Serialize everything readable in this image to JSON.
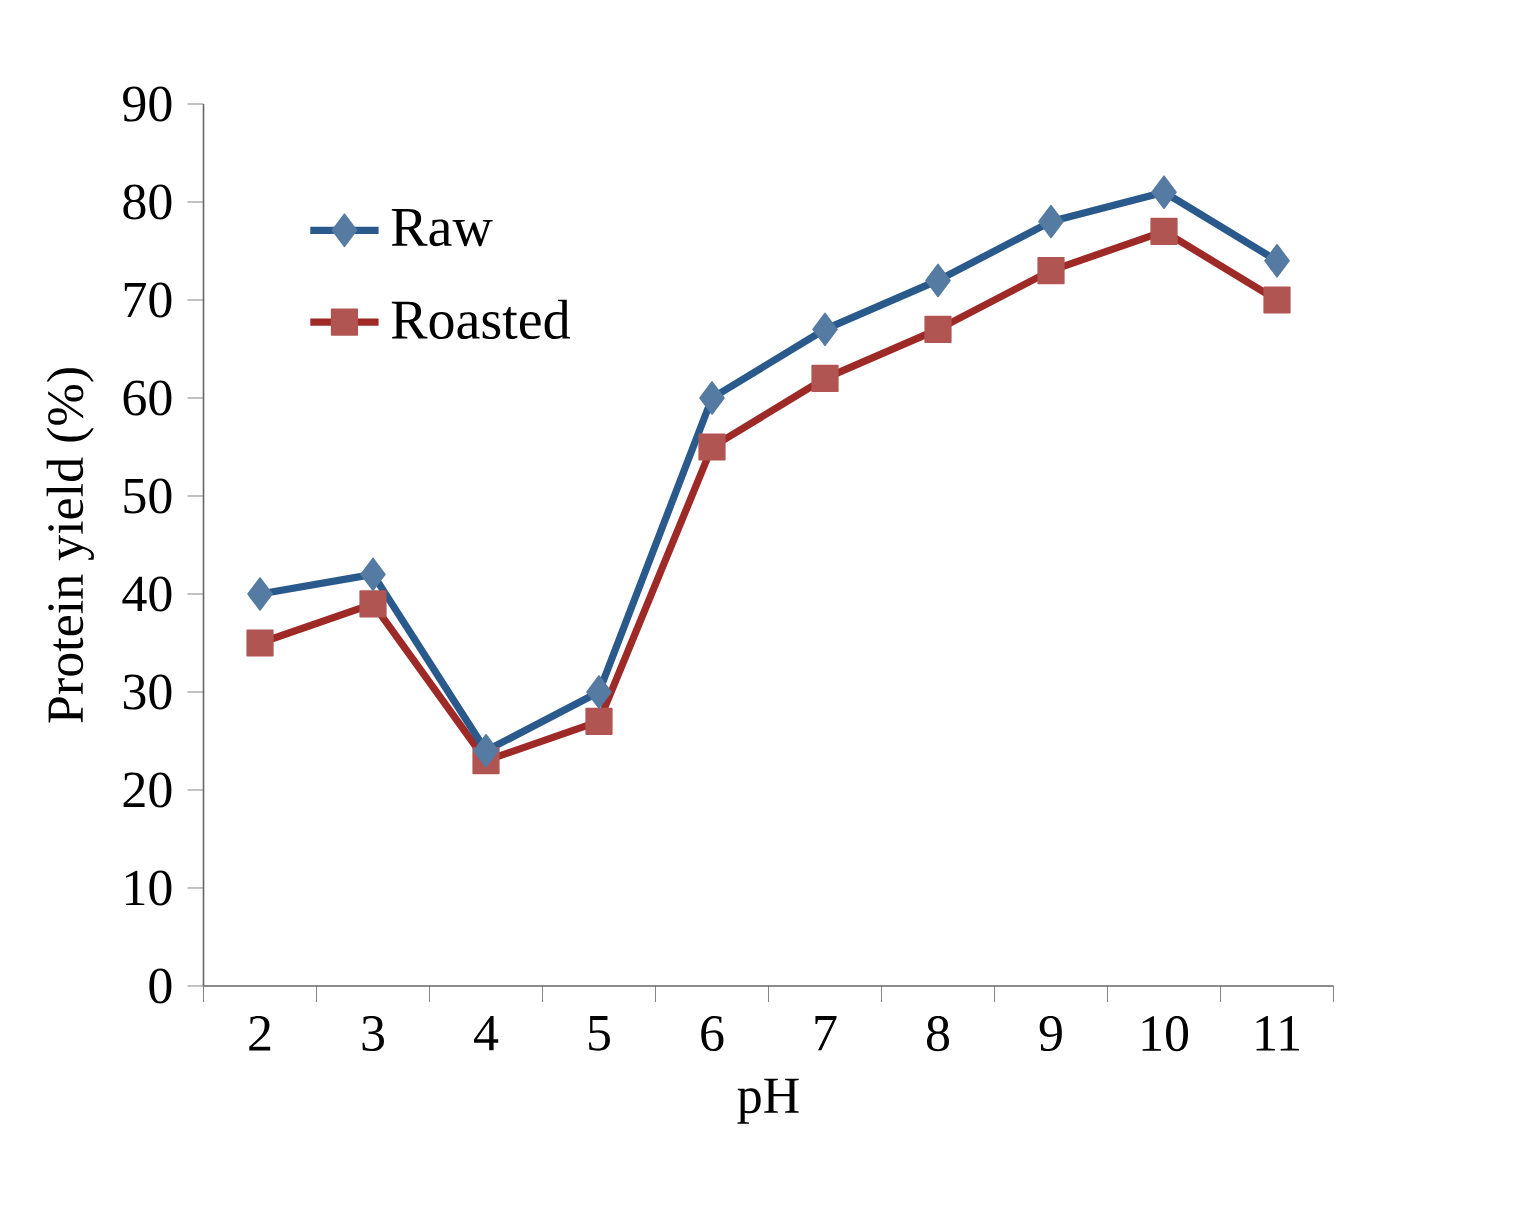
{
  "chart_data": {
    "type": "line",
    "xlabel": "pH",
    "ylabel": "Protein yield (%)",
    "categories": [
      "2",
      "3",
      "4",
      "5",
      "6",
      "7",
      "8",
      "9",
      "10",
      "11"
    ],
    "series": [
      {
        "name": "Raw",
        "color": "#2a5a8c",
        "marker": "diamond",
        "values": [
          40,
          42,
          24,
          30,
          60,
          67,
          72,
          78,
          81,
          74
        ]
      },
      {
        "name": "Roasted",
        "color": "#9e2a28",
        "marker": "square",
        "values": [
          35,
          39,
          23,
          27,
          55,
          62,
          67,
          73,
          77,
          70
        ]
      }
    ],
    "ylim": [
      0,
      90
    ],
    "yticks": [
      0,
      10,
      20,
      30,
      40,
      50,
      60,
      70,
      80,
      90
    ],
    "grid": false,
    "legend": "top left"
  }
}
